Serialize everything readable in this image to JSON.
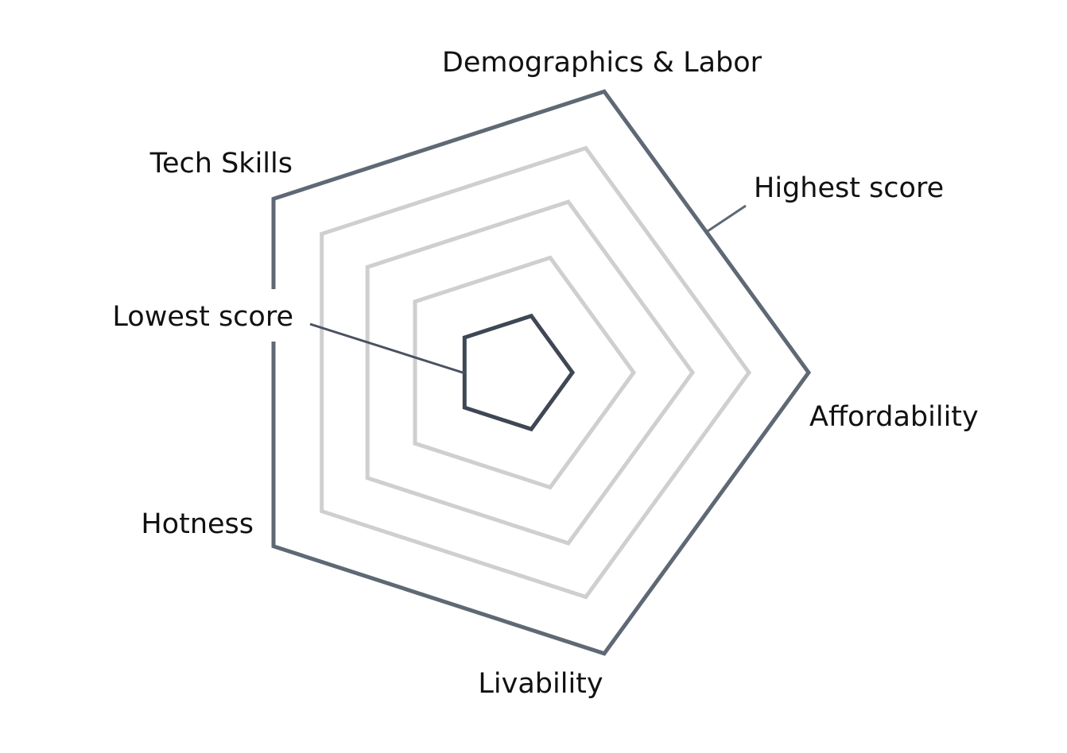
{
  "axes": [
    "Demographics & Labor",
    "Affordability",
    "Livability",
    "Hotness",
    "Tech Skills"
  ],
  "annotations": {
    "highest": "Highest score",
    "lowest": "Lowest score"
  }
}
